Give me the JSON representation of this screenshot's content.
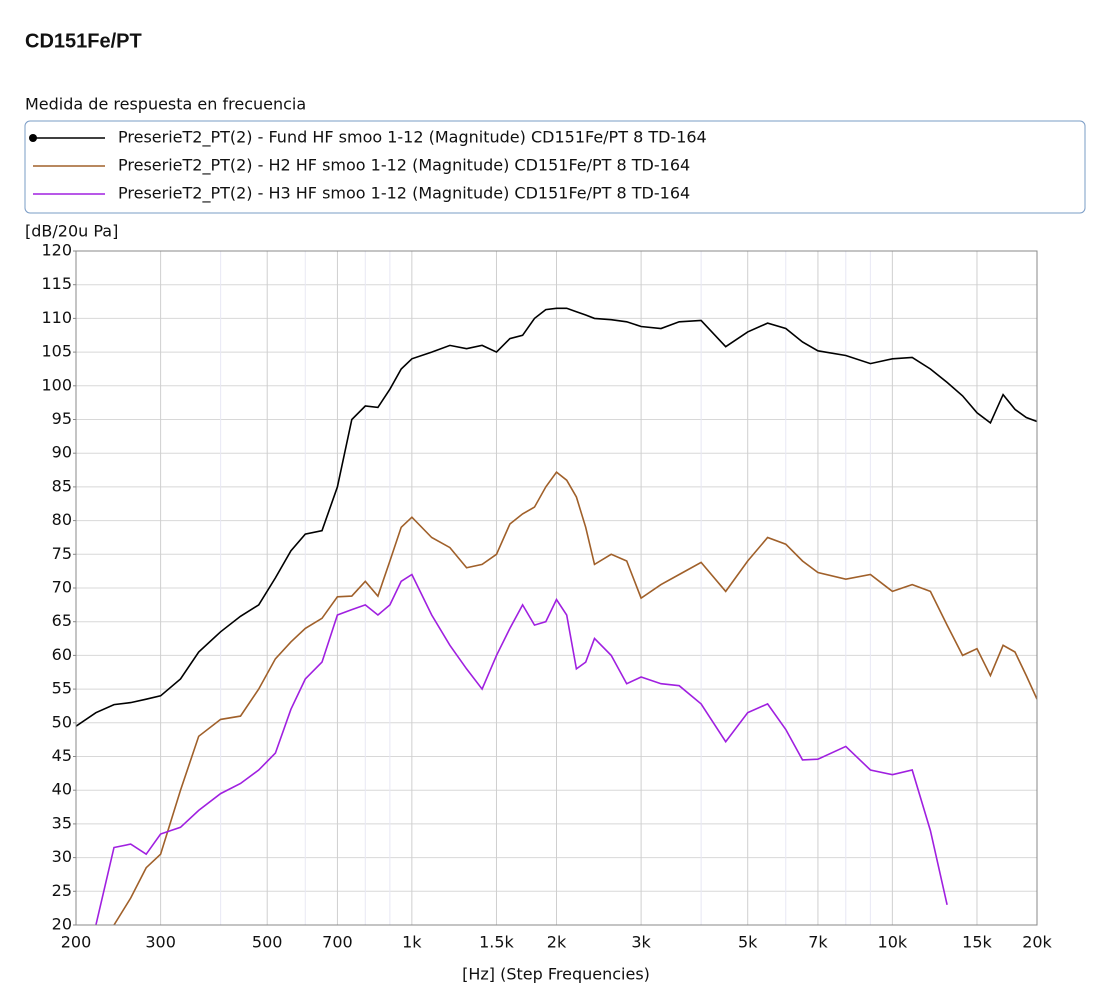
{
  "chart_data": {
    "type": "line",
    "title": "CD151Fe/PT",
    "subtitle": "Medida de respuesta en frecuencia",
    "y_label": "[dB/20u Pa]",
    "x_label": "[Hz] (Step Frequencies)",
    "x_scale": "log",
    "grid": true,
    "x": [
      200,
      220,
      240,
      260,
      280,
      300,
      330,
      360,
      400,
      440,
      480,
      520,
      560,
      600,
      650,
      700,
      750,
      800,
      850,
      900,
      950,
      1000,
      1100,
      1200,
      1300,
      1400,
      1500,
      1600,
      1700,
      1800,
      1900,
      2000,
      2100,
      2200,
      2300,
      2400,
      2600,
      2800,
      3000,
      3300,
      3600,
      4000,
      4500,
      5000,
      5500,
      6000,
      6500,
      7000,
      8000,
      9000,
      10000,
      11000,
      12000,
      13000,
      14000,
      15000,
      16000,
      17000,
      18000,
      19000,
      20000
    ],
    "series": [
      {
        "name": "PreserieT2_PT(2) - Fund HF smoo 1-12 (Magnitude)  CD151Fe/PT  8  TD-164",
        "color": "#000000",
        "marker": true,
        "values": [
          49.5,
          51.5,
          52.7,
          53,
          53.5,
          54,
          56.5,
          60.5,
          63.5,
          65.8,
          67.5,
          71.5,
          75.5,
          78,
          78.5,
          85,
          95,
          97,
          96.8,
          99.5,
          102.5,
          104,
          105,
          106,
          105.5,
          106,
          105,
          107,
          107.5,
          110,
          111.3,
          111.5,
          111.5,
          111,
          110.5,
          110,
          109.8,
          109.5,
          108.8,
          108.5,
          109.5,
          109.7,
          105.8,
          108,
          109.3,
          108.5,
          106.5,
          105.2,
          104.5,
          103.3,
          104,
          104.2,
          102.5,
          100.5,
          98.5,
          96,
          94.5,
          98.7,
          96.5,
          95.3,
          94.7
        ]
      },
      {
        "name": "PreserieT2_PT(2) - H2 HF smoo 1-12 (Magnitude)  CD151Fe/PT  8  TD-164",
        "color": "#a0602a",
        "values": [
          null,
          null,
          20,
          24,
          28.5,
          30.5,
          40,
          48,
          50.5,
          51,
          55,
          59.5,
          62,
          64,
          65.5,
          68.7,
          68.8,
          71,
          68.8,
          74,
          79,
          80.5,
          77.5,
          76,
          73,
          73.5,
          75,
          79.5,
          81,
          82,
          85,
          87.2,
          86,
          83.5,
          79,
          73.5,
          75,
          74,
          68.5,
          70.5,
          72,
          73.8,
          69.5,
          74,
          77.5,
          76.5,
          74,
          72.3,
          71.3,
          72,
          69.5,
          70.5,
          69.5,
          64.5,
          60,
          61,
          57,
          61.5,
          60.5,
          57,
          53.5
        ]
      },
      {
        "name": "PreserieT2_PT(2) - H3 HF smoo 1-12 (Magnitude)  CD151Fe/PT  8  TD-164",
        "color": "#a020e0",
        "values": [
          null,
          20,
          31.5,
          32,
          30.5,
          33.5,
          34.5,
          37,
          39.5,
          41,
          43,
          45.5,
          52,
          56.5,
          59,
          66,
          66.8,
          67.5,
          66,
          67.5,
          71,
          72,
          66,
          61.5,
          58,
          55,
          60,
          64,
          67.5,
          64.5,
          65,
          68.3,
          66,
          58,
          59,
          62.5,
          60,
          55.8,
          56.8,
          55.8,
          55.5,
          52.8,
          47.2,
          51.5,
          52.8,
          49,
          44.5,
          44.6,
          46.5,
          43,
          42.3,
          43,
          34,
          23,
          null,
          null,
          null,
          null,
          null,
          null,
          null
        ]
      }
    ],
    "xlim": [
      200,
      20000
    ],
    "ylim": [
      20,
      120
    ],
    "xticks": [
      200,
      300,
      500,
      700,
      {
        "value": 1000,
        "label": "1k"
      },
      {
        "value": 1500,
        "label": "1.5k"
      },
      {
        "value": 2000,
        "label": "2k"
      },
      {
        "value": 3000,
        "label": "3k"
      },
      {
        "value": 5000,
        "label": "5k"
      },
      {
        "value": 7000,
        "label": "7k"
      },
      {
        "value": 10000,
        "label": "10k"
      },
      {
        "value": 15000,
        "label": "15k"
      },
      {
        "value": 20000,
        "label": "20k"
      }
    ],
    "xgrid_minor": [
      400,
      600,
      800,
      900,
      4000,
      6000,
      8000,
      9000
    ],
    "yticks": [
      20,
      25,
      30,
      35,
      40,
      45,
      50,
      55,
      60,
      65,
      70,
      75,
      80,
      85,
      90,
      95,
      100,
      105,
      110,
      115,
      120
    ]
  }
}
